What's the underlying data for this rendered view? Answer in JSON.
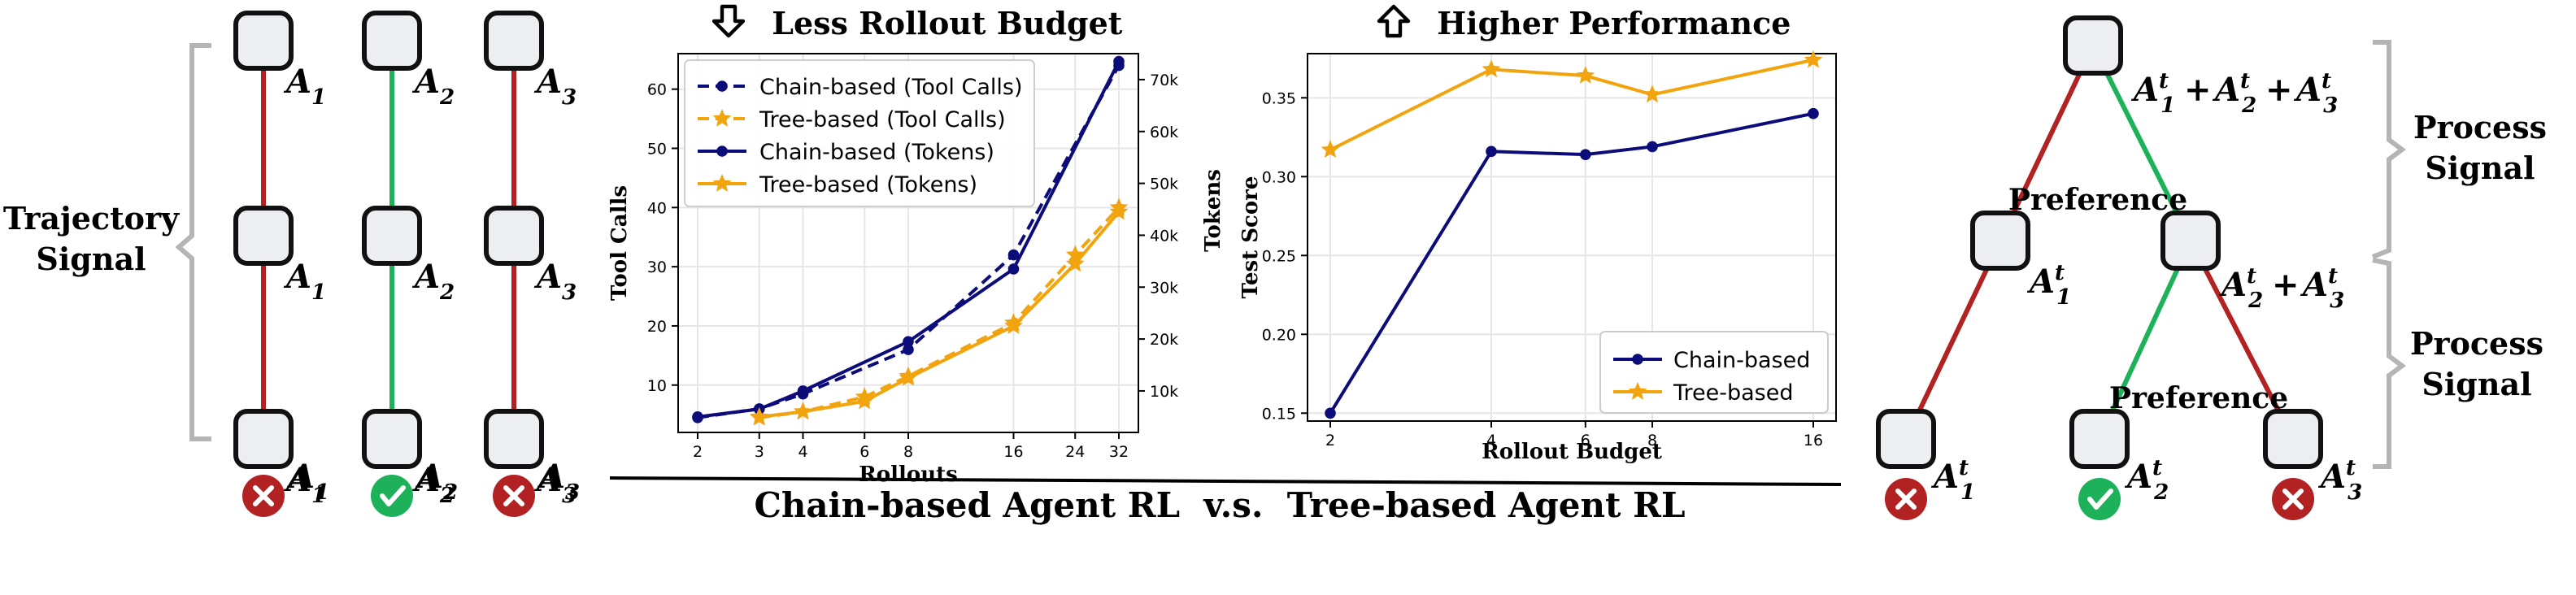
{
  "colors": {
    "bad": "#b22222",
    "good": "#1db25a",
    "node_fill": "#eceef2",
    "node_stroke": "#111111",
    "bracket": "#b5b5b5",
    "navy": "#0b0b7a",
    "gold": "#f2a40f",
    "grid": "#e6e6e6"
  },
  "labels": {
    "trajectory_signal": [
      "Trajectory",
      "Signal"
    ],
    "process_signal_top": [
      "Process",
      "Signal"
    ],
    "process_signal_bottom": [
      "Process",
      "Signal"
    ],
    "preference_top": "Preference",
    "preference_bottom": "Preference",
    "title_left": "Less Rollout Budget",
    "title_right": "Higher Performance",
    "bottom_caption": "Chain-based Agent RL  v.s.  Tree-based Agent RL"
  },
  "chains": [
    {
      "sub": "1",
      "status": "wrong",
      "color": "bad"
    },
    {
      "sub": "2",
      "status": "correct",
      "color": "good"
    },
    {
      "sub": "3",
      "status": "wrong",
      "color": "bad"
    }
  ],
  "tree": {
    "root_label": [
      "1",
      "2",
      "3"
    ],
    "mid_right_label": [
      "2",
      "3"
    ],
    "leaf_left": "1",
    "leaf_mid_left": "1",
    "leaf_mid": "2",
    "leaf_right": "3"
  },
  "chart_data": [
    {
      "type": "line",
      "xlabel": "Rollouts",
      "ylabel": "Tool Calls",
      "y2label": "Tokens",
      "x_scale": "log",
      "x_ticks": [
        2,
        3,
        4,
        6,
        8,
        16,
        24,
        32
      ],
      "y_ticks": [
        10,
        20,
        30,
        40,
        50,
        60
      ],
      "y2_ticks": [
        "10k",
        "20k",
        "30k",
        "40k",
        "50k",
        "60k",
        "70k"
      ],
      "ylim": [
        2,
        66
      ],
      "y2lim": [
        2000,
        75000
      ],
      "legend": "top-left",
      "grid": true,
      "series": [
        {
          "name": "Chain-based (Tool Calls)",
          "axis": "left",
          "color": "navy",
          "style": "dashed",
          "marker": "circle",
          "x": [
            2,
            3,
            4,
            8,
            16,
            32
          ],
          "values": [
            4.5,
            6,
            8.5,
            16,
            32,
            64
          ]
        },
        {
          "name": "Tree-based (Tool Calls)",
          "axis": "left",
          "color": "gold",
          "style": "dashed",
          "marker": "star",
          "x": [
            3,
            4,
            6,
            8,
            16,
            24,
            32
          ],
          "values": [
            4.5,
            5.5,
            8,
            11.5,
            20.5,
            32,
            40
          ]
        },
        {
          "name": "Chain-based (Tokens)",
          "axis": "right",
          "color": "navy",
          "style": "solid",
          "marker": "circle",
          "x": [
            2,
            3,
            4,
            8,
            16,
            32
          ],
          "values": [
            5000,
            6500,
            10000,
            19500,
            33500,
            73500
          ]
        },
        {
          "name": "Tree-based (Tokens)",
          "axis": "right",
          "color": "gold",
          "style": "solid",
          "marker": "star",
          "x": [
            3,
            4,
            6,
            8,
            16,
            24,
            32
          ],
          "values": [
            5000,
            6000,
            8000,
            12500,
            22500,
            34500,
            44500
          ]
        }
      ]
    },
    {
      "type": "line",
      "xlabel": "Rollout Budget",
      "ylabel": "Test Score",
      "x_scale": "log",
      "x_ticks": [
        2,
        4,
        6,
        8,
        16
      ],
      "y_ticks": [
        "0.15",
        "0.20",
        "0.25",
        "0.30",
        "0.35"
      ],
      "ylim": [
        0.145,
        0.378
      ],
      "legend": "bottom-right",
      "grid": true,
      "series": [
        {
          "name": "Chain-based",
          "color": "navy",
          "marker": "circle",
          "x": [
            2,
            4,
            6,
            8,
            16
          ],
          "values": [
            0.15,
            0.316,
            0.314,
            0.319,
            0.34
          ]
        },
        {
          "name": "Tree-based",
          "color": "gold",
          "marker": "star",
          "x": [
            2,
            4,
            6,
            8,
            16
          ],
          "values": [
            0.317,
            0.368,
            0.364,
            0.352,
            0.374
          ]
        }
      ]
    }
  ]
}
